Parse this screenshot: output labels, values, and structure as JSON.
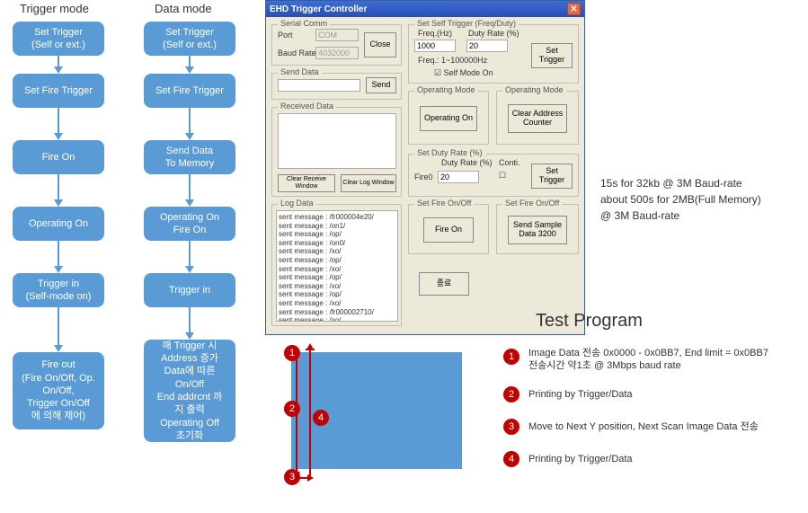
{
  "headers": {
    "trigger": "Trigger mode",
    "data": "Data mode"
  },
  "trigger_col": {
    "b1": "Set Trigger\n(Self or ext.)",
    "b2": "Set Fire Trigger",
    "b3": "Fire On",
    "b4": "Operating On",
    "b5": "Trigger in\n(Self-mode on)",
    "b6": "Fire out\n(Fire On/Off, Op.\nOn/Off,\nTrigger On/Off\n에 의해 제어)"
  },
  "data_col": {
    "b1": "Set Trigger\n(Self or ext.)",
    "b2": "Set Fire Trigger",
    "b3": "Send Data\nTo Memory",
    "b4": "Operating On\nFire On",
    "b5": "Trigger in",
    "b6": "매 Trigger 시\nAddress 증가\nData에 따른\nOn/Off\nEnd addrcnt 까\n지 출력\nOperating Off\n초기화"
  },
  "win": {
    "title": "EHD Trigger Controller",
    "serial": {
      "group": "Serial Comm",
      "port": "Port",
      "port_val": "COM",
      "baud": "Baud Rate",
      "baud_val": "4032000",
      "close": "Close"
    },
    "senddata": {
      "group": "Send Data",
      "send": "Send"
    },
    "received": {
      "group": "Received Data",
      "clear_recv": "Clear Receive Window",
      "clear_log": "Clear Log Window"
    },
    "selftrig": {
      "group": "Set Self Trigger (Freq/Duty)",
      "freq": "Freq.(Hz)",
      "duty": "Duty Rate (%)",
      "freq_val": "1000",
      "duty_val": "20",
      "range": "Freq.: 1~100000Hz",
      "selfmode": "Self Mode On",
      "set": "Set Trigger"
    },
    "opmode1": {
      "group": "Operating Mode",
      "btn": "Operating On"
    },
    "opmode2": {
      "group": "Operating Mode",
      "btn": "Clear Address\nCounter"
    },
    "dutyrate": {
      "group": "Set Duty Rate (%)",
      "lbl": "Duty Rate (%)",
      "conti": "Conti.",
      "fire0": "Fire0",
      "val": "20",
      "set": "Set Trigger"
    },
    "fire1": {
      "group": "Set Fire On/Off",
      "btn": "Fire On"
    },
    "fire2": {
      "group": "Set Fire On/Off",
      "btn": "Send Sample\nData 3200"
    },
    "end": "종료",
    "log": {
      "group": "Log Data",
      "lines": [
        "sent message : /fr000004e20/",
        "sent message : /on1/",
        "sent message : /op/",
        "sent message : /on0/",
        "sent message : /xo/",
        "sent message : /op/",
        "sent message : /xo/",
        "sent message : /op/",
        "sent message : /xo/",
        "sent message : /op/",
        "sent message : /xo/",
        "sent message : /fr000002710/",
        "sent message : /xo/"
      ]
    }
  },
  "note": {
    "l1": "15s for 32kb @ 3M Baud-rate",
    "l2": "about 500s for 2MB(Full Memory)",
    "l3": "@ 3M Baud-rate"
  },
  "test_program": "Test Program",
  "legend": {
    "i1": "Image Data 전송 0x0000 - 0x0BB7,  End limit = 0x0BB7\n전송시간 약1초 @ 3Mbps baud rate",
    "i2": "Printing by Trigger/Data",
    "i3": "Move to Next Y position, Next Scan Image Data 전송",
    "i4": "Printing by Trigger/Data"
  },
  "style": {
    "flow_bg": "#5b9bd5",
    "flow_fg": "#ffffff",
    "red": "#c00000",
    "win_bg": "#ece9d8",
    "title_bg": "#2a4db0"
  }
}
